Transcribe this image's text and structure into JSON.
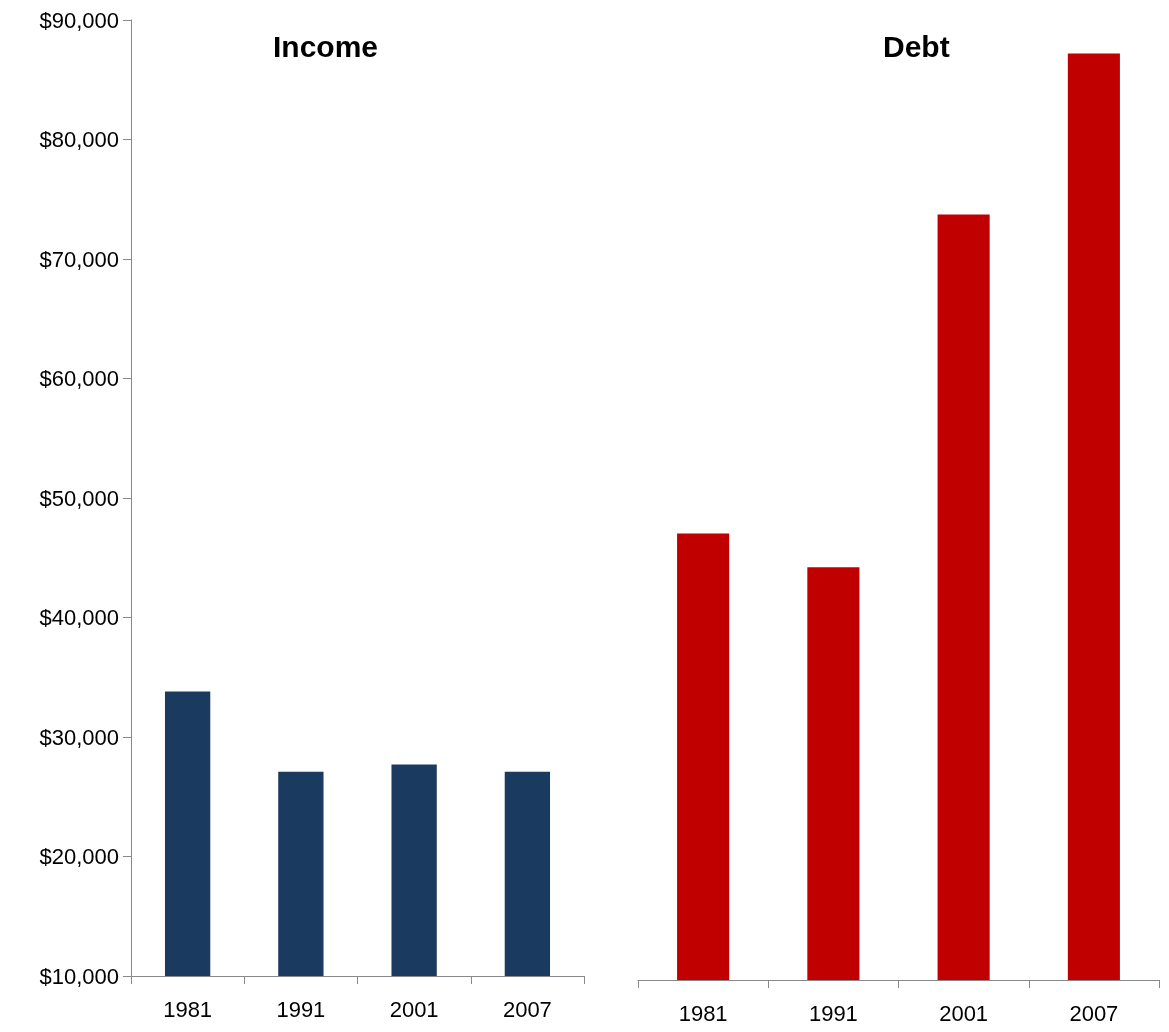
{
  "chart_data": [
    {
      "type": "bar",
      "title": "Income",
      "categories": [
        "1981",
        "1991",
        "2001",
        "2007"
      ],
      "series": [
        {
          "color": "#1a3a60",
          "values": [
            33800,
            27100,
            27700,
            27100
          ]
        }
      ],
      "ylim": [
        10000,
        90000
      ],
      "yticks": [
        {
          "value": 10000,
          "label": "$10,000"
        },
        {
          "value": 20000,
          "label": "$20,000"
        },
        {
          "value": 30000,
          "label": "$30,000"
        },
        {
          "value": 40000,
          "label": "$40,000"
        },
        {
          "value": 50000,
          "label": "$50,000"
        },
        {
          "value": 60000,
          "label": "$60,000"
        },
        {
          "value": 70000,
          "label": "$70,000"
        },
        {
          "value": 80000,
          "label": "$80,000"
        },
        {
          "value": 90000,
          "label": "$90,000"
        }
      ],
      "grid": false
    },
    {
      "type": "bar",
      "title": "Debt",
      "categories": [
        "1981",
        "1991",
        "2001",
        "2007"
      ],
      "series": [
        {
          "color": "#c00000",
          "values": [
            47200,
            44400,
            73800,
            87200
          ]
        }
      ],
      "ylim": [
        10000,
        90000
      ],
      "grid": false,
      "tick_labels": "x"
    }
  ]
}
